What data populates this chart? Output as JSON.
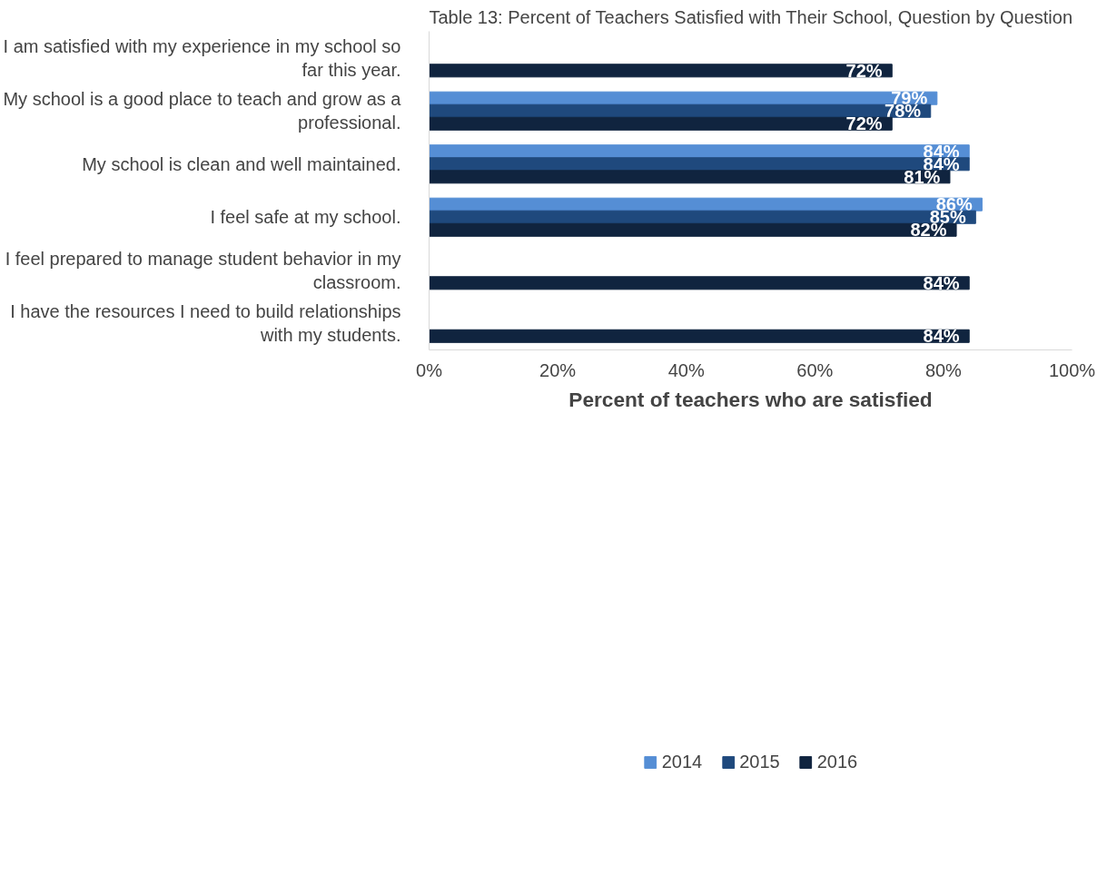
{
  "chart_data": {
    "type": "bar",
    "orientation": "horizontal",
    "title": "Table 13: Percent of Teachers Satisfied with Their School, Question by Question",
    "xlabel": "Percent of teachers who are satisfied",
    "categories": [
      "I am satisfied with my experience in my school so far this year.",
      "My school is a good place to teach and grow as a professional.",
      "My school is clean and well maintained.",
      "I feel safe at my school.",
      "I feel prepared to manage student behavior in my classroom.",
      "I have the resources I need to build relationships with my students."
    ],
    "series": [
      {
        "name": "2014",
        "color": "#558ed5",
        "values": [
          null,
          79,
          84,
          86,
          null,
          null
        ],
        "value_labels": [
          null,
          "79%",
          "84%",
          "86%",
          null,
          null
        ]
      },
      {
        "name": "2015",
        "color": "#1f497d",
        "values": [
          null,
          78,
          84,
          85,
          null,
          null
        ],
        "value_labels": [
          null,
          "78%",
          "84%",
          "85%",
          null,
          null
        ]
      },
      {
        "name": "2016",
        "color": "#10243f",
        "values": [
          72,
          72,
          81,
          82,
          84,
          84
        ],
        "value_labels": [
          "72%",
          "72%",
          "81%",
          "82%",
          "84%",
          "84%"
        ]
      }
    ],
    "xlim": [
      0,
      100
    ],
    "xticks": [
      {
        "value": 0,
        "label": "0%"
      },
      {
        "value": 20,
        "label": "20%"
      },
      {
        "value": 40,
        "label": "40%"
      },
      {
        "value": 60,
        "label": "60%"
      },
      {
        "value": 80,
        "label": "80%"
      },
      {
        "value": 100,
        "label": "100%"
      }
    ],
    "grid": false,
    "legend": "bottom"
  }
}
